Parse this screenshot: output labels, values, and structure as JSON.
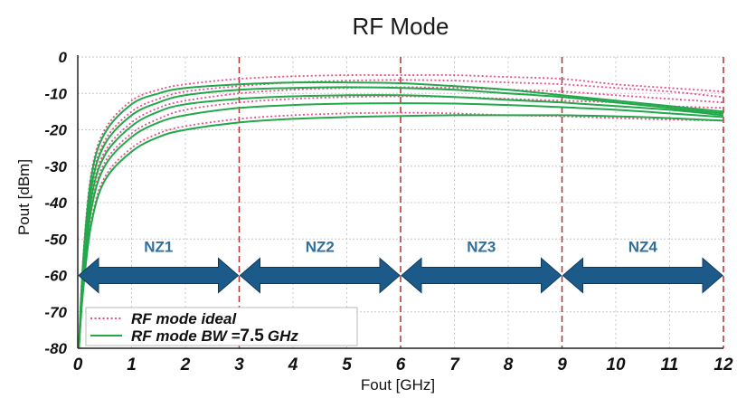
{
  "chart_data": {
    "type": "line",
    "title": "RF Mode",
    "xlabel": "Fout  [GHz]",
    "ylabel": "Pout  [dBm]",
    "xlim": [
      0,
      12
    ],
    "ylim": [
      -80,
      0
    ],
    "x_ticks": [
      "0",
      "1",
      "2",
      "3",
      "4",
      "5",
      "6",
      "7",
      "8",
      "9",
      "10",
      "11",
      "12"
    ],
    "y_ticks": [
      "0",
      "-10",
      "-20",
      "-30",
      "-40",
      "-50",
      "-60",
      "-70",
      "-80"
    ],
    "grid": true,
    "legend_position": "bottom-left",
    "legend": [
      {
        "label": "RF mode ideal",
        "style": "dotted",
        "color": "#e8508c"
      },
      {
        "label_main": "RF mode BW =",
        "label_value": "7.5",
        "label_unit": "GHz",
        "style": "solid",
        "color": "#22a84a"
      }
    ],
    "zones": [
      {
        "label": "NZ1",
        "from": 0,
        "to": 3
      },
      {
        "label": "NZ2",
        "from": 3,
        "to": 6
      },
      {
        "label": "NZ3",
        "from": 6,
        "to": 9
      },
      {
        "label": "NZ4",
        "from": 9,
        "to": 12
      }
    ],
    "zone_arrow_y": -60,
    "zone_label_y": -52,
    "zone_dividers": [
      3,
      6,
      9,
      12
    ],
    "x": [
      0.02,
      0.1,
      0.25,
      0.5,
      1,
      1.5,
      2,
      3,
      4,
      5,
      6,
      7,
      8,
      9,
      10,
      11,
      12
    ],
    "series": [
      {
        "group": "ideal",
        "values": [
          -80,
          -55,
          -32,
          -20,
          -12,
          -9,
          -7.5,
          -6,
          -5.3,
          -5,
          -5,
          -5,
          -5.5,
          -6,
          -7.5,
          -8.5,
          -9.5
        ]
      },
      {
        "group": "ideal",
        "values": [
          -80,
          -57,
          -35,
          -23,
          -15,
          -11.5,
          -9.5,
          -8,
          -7,
          -6.5,
          -6.3,
          -6.5,
          -7,
          -7.5,
          -8.5,
          -9.5,
          -11
        ]
      },
      {
        "group": "ideal",
        "values": [
          -80,
          -59,
          -38,
          -26,
          -18,
          -14,
          -12,
          -10,
          -9,
          -8.5,
          -8.3,
          -8.5,
          -9,
          -9.5,
          -10.5,
          -11.5,
          -12.5
        ]
      },
      {
        "group": "ideal",
        "values": [
          -80,
          -61,
          -41,
          -29,
          -21,
          -17,
          -14.5,
          -12.5,
          -11.5,
          -11,
          -10.8,
          -11,
          -11.5,
          -12,
          -12.5,
          -13.5,
          -14
        ]
      },
      {
        "group": "ideal",
        "values": [
          -80,
          -63,
          -45,
          -33,
          -25,
          -21,
          -19,
          -17,
          -16,
          -15.5,
          -15.3,
          -15.5,
          -16,
          -16.3,
          -16.8,
          -17.2,
          -17.5
        ]
      },
      {
        "group": "bw",
        "values": [
          -80,
          -56,
          -33,
          -21,
          -13,
          -10,
          -8.5,
          -7.5,
          -7,
          -7,
          -7.2,
          -8,
          -9,
          -10.5,
          -12,
          -13.5,
          -15
        ]
      },
      {
        "group": "bw",
        "values": [
          -80,
          -58,
          -36,
          -24,
          -16,
          -12.5,
          -10.5,
          -9,
          -8.5,
          -8.3,
          -8.5,
          -9,
          -10,
          -11,
          -12.5,
          -14,
          -15.5
        ]
      },
      {
        "group": "bw",
        "values": [
          -80,
          -60,
          -39,
          -27,
          -19,
          -15,
          -13,
          -11.5,
          -10.8,
          -10.5,
          -10.5,
          -11,
          -11.8,
          -12.5,
          -13.5,
          -14.5,
          -16
        ]
      },
      {
        "group": "bw",
        "values": [
          -80,
          -62,
          -42,
          -30,
          -22,
          -18,
          -16,
          -14,
          -13.2,
          -12.8,
          -12.7,
          -12.8,
          -13.2,
          -13.8,
          -14.5,
          -15.5,
          -16.5
        ]
      },
      {
        "group": "bw",
        "values": [
          -80,
          -64,
          -46,
          -34,
          -26,
          -22,
          -20,
          -18,
          -17,
          -16.5,
          -16.2,
          -16,
          -16,
          -16,
          -16.3,
          -16.8,
          -17.5
        ]
      }
    ],
    "colors": {
      "ideal": "#e8508c",
      "bw": "#22a84a",
      "arrow": "#1c5a8a",
      "divider": "#b03030",
      "grid": "#c8c8c8",
      "zone_label": "#2f6f9e"
    }
  }
}
